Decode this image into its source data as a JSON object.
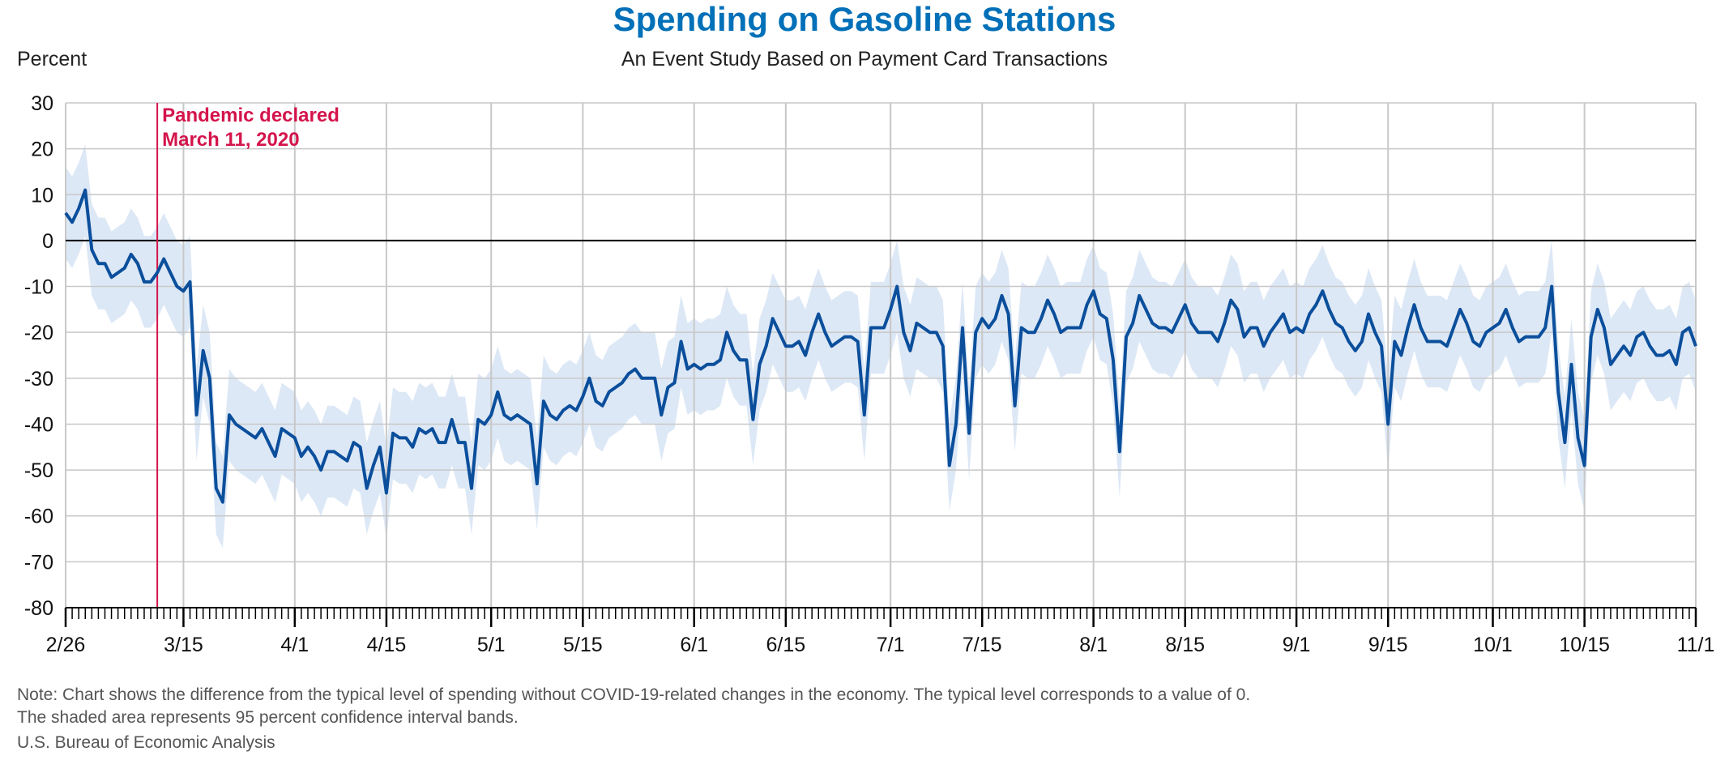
{
  "colors": {
    "title": "#0070b8",
    "line": "#0b4f9c",
    "band": "#dde8f6",
    "event": "#d4144b",
    "grid": "#c8c8c8",
    "zero": "#000000"
  },
  "chart_data": {
    "type": "line",
    "title": "Spending on Gasoline Stations",
    "subtitle": "An Event Study Based on Payment Card Transactions",
    "ylabel": "Percent",
    "xlabel": "",
    "ylim": [
      -80,
      30
    ],
    "yticks": [
      30,
      20,
      10,
      0,
      -10,
      -20,
      -30,
      -40,
      -50,
      -60,
      -70,
      -80
    ],
    "xrange_days": {
      "start": "2/26",
      "end": "11/1"
    },
    "xticks": [
      {
        "label": "2/26",
        "day": 0
      },
      {
        "label": "3/15",
        "day": 18
      },
      {
        "label": "4/1",
        "day": 35
      },
      {
        "label": "4/15",
        "day": 49
      },
      {
        "label": "5/1",
        "day": 65
      },
      {
        "label": "5/15",
        "day": 79
      },
      {
        "label": "6/1",
        "day": 96
      },
      {
        "label": "6/15",
        "day": 110
      },
      {
        "label": "7/1",
        "day": 126
      },
      {
        "label": "7/15",
        "day": 140
      },
      {
        "label": "8/1",
        "day": 157
      },
      {
        "label": "8/15",
        "day": 171
      },
      {
        "label": "9/1",
        "day": 188
      },
      {
        "label": "9/15",
        "day": 202
      },
      {
        "label": "10/1",
        "day": 218
      },
      {
        "label": "10/15",
        "day": 232
      },
      {
        "label": "11/1",
        "day": 249
      }
    ],
    "grid": true,
    "event": {
      "label_line1": "Pandemic declared",
      "label_line2": "March 11, 2020",
      "day": 14
    },
    "series": [
      {
        "x_start": "2/26",
        "values": [
          6,
          4,
          7,
          11,
          -2,
          -5,
          -5,
          -8,
          -7,
          -6,
          -3,
          -5,
          -9,
          -9,
          -7,
          -4,
          -7,
          -10,
          -11,
          -9,
          -38,
          -24,
          -30,
          -54,
          -57,
          -38,
          -40,
          -41,
          -42,
          -43,
          -41,
          -44,
          -47,
          -41,
          -42,
          -43,
          -47,
          -45,
          -47,
          -50,
          -46,
          -46,
          -47,
          -48,
          -44,
          -45,
          -54,
          -49,
          -45,
          -55,
          -42,
          -43,
          -43,
          -45,
          -41,
          -42,
          -41,
          -44,
          -44,
          -39,
          -44,
          -44,
          -54,
          -39,
          -40,
          -38,
          -33,
          -38,
          -39,
          -38,
          -39,
          -40,
          -53,
          -35,
          -38,
          -39,
          -37,
          -36,
          -37,
          -34,
          -30,
          -35,
          -36,
          -33,
          -32,
          -31,
          -29,
          -28,
          -30,
          -30,
          -30,
          -38,
          -32,
          -31,
          -22,
          -28,
          -27,
          -28,
          -27,
          -27,
          -26,
          -20,
          -24,
          -26,
          -26,
          -39,
          -27,
          -23,
          -17,
          -20,
          -23,
          -23,
          -22,
          -25,
          -20,
          -16,
          -20,
          -23,
          -22,
          -21,
          -21,
          -22,
          -38,
          -19,
          -19,
          -19,
          -15,
          -10,
          -20,
          -24,
          -18,
          -19,
          -20,
          -20,
          -23,
          -49,
          -40,
          -19,
          -42,
          -20,
          -17,
          -19,
          -17,
          -12,
          -16,
          -36,
          -19,
          -20,
          -20,
          -17,
          -13,
          -16,
          -20,
          -19,
          -19,
          -19,
          -14,
          -11,
          -16,
          -17,
          -26,
          -46,
          -21,
          -18,
          -12,
          -15,
          -18,
          -19,
          -19,
          -20,
          -17,
          -14,
          -18,
          -20,
          -20,
          -20,
          -22,
          -18,
          -13,
          -15,
          -21,
          -19,
          -19,
          -23,
          -20,
          -18,
          -16,
          -20,
          -19,
          -20,
          -16,
          -14,
          -11,
          -15,
          -18,
          -19,
          -22,
          -24,
          -22,
          -16,
          -20,
          -23,
          -40,
          -22,
          -25,
          -19,
          -14,
          -19,
          -22,
          -22,
          -22,
          -23,
          -19,
          -15,
          -18,
          -22,
          -23,
          -20,
          -19,
          -18,
          -15,
          -19,
          -22,
          -21,
          -21,
          -21,
          -19,
          -10,
          -33,
          -44,
          -27,
          -43,
          -49,
          -21,
          -15,
          -19,
          -27,
          -25,
          -23,
          -25,
          -21,
          -20,
          -23,
          -25,
          -25,
          -24,
          -27,
          -20,
          -19,
          -23
        ]
      }
    ],
    "band_halfwidth_percent": 10
  },
  "note_line1": "Note: Chart shows the difference from the typical level of spending without COVID-19-related changes in the economy. The typical level corresponds to a value of 0.",
  "note_line2": "The shaded area represents 95 percent confidence interval bands.",
  "source": "U.S. Bureau of Economic Analysis"
}
